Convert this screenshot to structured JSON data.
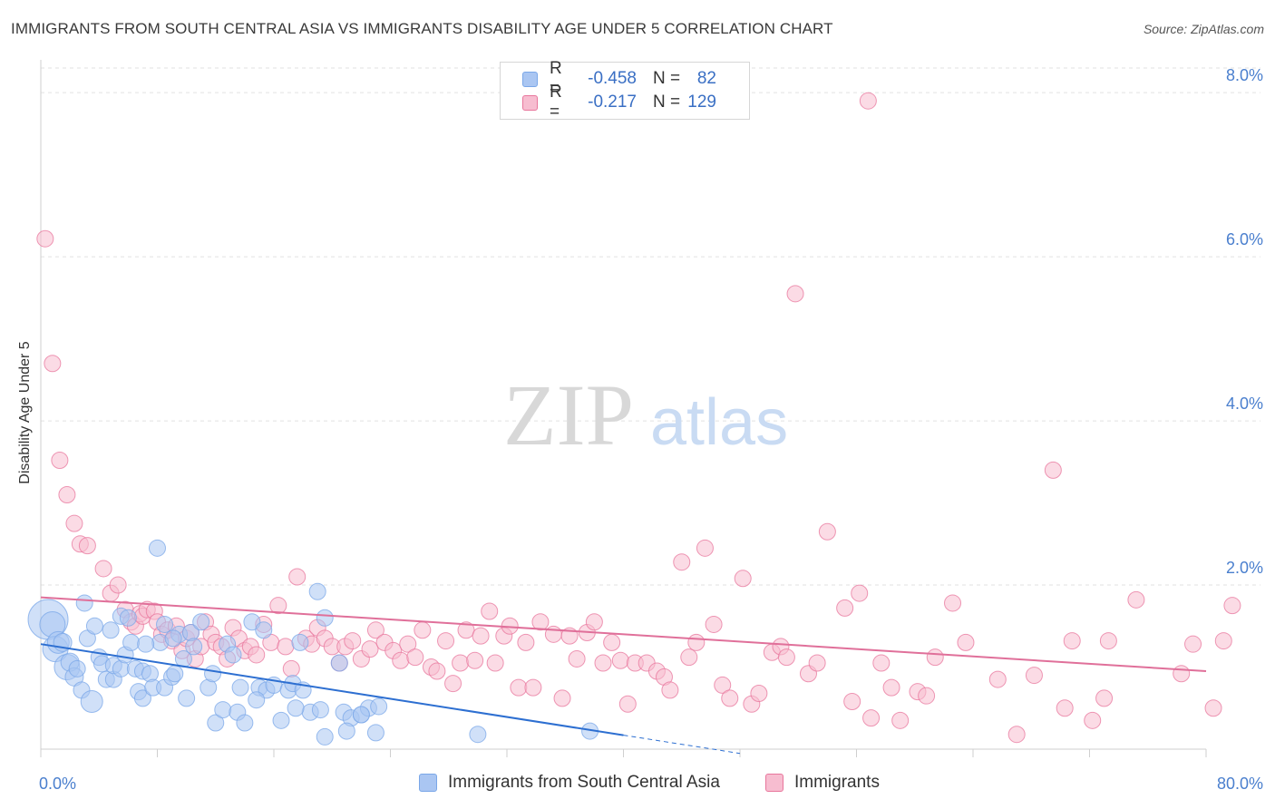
{
  "header": {
    "title": "IMMIGRANTS FROM SOUTH CENTRAL ASIA VS IMMIGRANTS DISABILITY AGE UNDER 5 CORRELATION CHART",
    "source": "Source: ZipAtlas.com"
  },
  "legend": {
    "rows": [
      {
        "r_label": "R =",
        "r_value": "-0.458",
        "n_label": "N =",
        "n_value": "82",
        "color": "#aac6f2"
      },
      {
        "r_label": "R =",
        "r_value": "-0.217",
        "n_label": "N =",
        "n_value": "129",
        "color": "#f7bdd0"
      }
    ]
  },
  "watermark": {
    "zip": "ZIP",
    "atlas": "atlas"
  },
  "chart_data": {
    "type": "scatter",
    "title": "IMMIGRANTS FROM SOUTH CENTRAL ASIA VS IMMIGRANTS DISABILITY AGE UNDER 5 CORRELATION CHART",
    "ylabel": "Disability Age Under 5",
    "xlabel": "",
    "xlim": [
      0,
      80
    ],
    "ylim": [
      0,
      8.3
    ],
    "x_tick_labels": [
      "0.0%",
      "80.0%"
    ],
    "y_ticks": [
      2,
      4,
      6,
      8
    ],
    "y_tick_labels": [
      "2.0%",
      "4.0%",
      "6.0%",
      "8.0%"
    ],
    "grid": true,
    "legend_position": "top-center",
    "series": [
      {
        "name": "Immigrants from South Central Asia",
        "color": "#7aa7e8",
        "fill": "#aac6f2",
        "r": -0.458,
        "n": 82,
        "trend": {
          "x0": 0,
          "y0": 1.28,
          "x1": 40,
          "y1": 0.17,
          "dash_to_x": 48
        },
        "points": [
          [
            0.5,
            1.58,
            22
          ],
          [
            0.8,
            1.52,
            14
          ],
          [
            1,
            1.22,
            14
          ],
          [
            1.2,
            1.3,
            12
          ],
          [
            1.5,
            1.3,
            10
          ],
          [
            1.8,
            1.0,
            14
          ],
          [
            2,
            1.06,
            10
          ],
          [
            2.3,
            0.88,
            10
          ],
          [
            2.5,
            0.98,
            9
          ],
          [
            2.8,
            0.72,
            9
          ],
          [
            3,
            1.78,
            9
          ],
          [
            3.2,
            1.35,
            9
          ],
          [
            3.5,
            0.58,
            12
          ],
          [
            3.7,
            1.5,
            9
          ],
          [
            4,
            1.12,
            9
          ],
          [
            4.2,
            1.04,
            9
          ],
          [
            4.5,
            0.85,
            9
          ],
          [
            4.8,
            1.45,
            9
          ],
          [
            5,
            0.85,
            9
          ],
          [
            5,
            1.02,
            9
          ],
          [
            5.5,
            0.98,
            9
          ],
          [
            5.8,
            1.15,
            9
          ],
          [
            5.5,
            1.62,
            9
          ],
          [
            6,
            1.6,
            9
          ],
          [
            6.2,
            1.3,
            9
          ],
          [
            6.5,
            0.98,
            9
          ],
          [
            6.7,
            0.7,
            9
          ],
          [
            7,
            0.62,
            9
          ],
          [
            7,
            0.95,
            9
          ],
          [
            7.5,
            0.92,
            9
          ],
          [
            7.7,
            0.75,
            9
          ],
          [
            8,
            2.45,
            9
          ],
          [
            8.2,
            1.3,
            9
          ],
          [
            8.5,
            0.75,
            9
          ],
          [
            8.5,
            1.52,
            9
          ],
          [
            9,
            0.88,
            9
          ],
          [
            9.2,
            0.92,
            9
          ],
          [
            9.5,
            1.4,
            9
          ],
          [
            9.8,
            1.1,
            9
          ],
          [
            10,
            0.62,
            9
          ],
          [
            10.3,
            1.42,
            9
          ],
          [
            10.5,
            1.25,
            9
          ],
          [
            11,
            1.55,
            9
          ],
          [
            11.5,
            0.75,
            9
          ],
          [
            11.8,
            0.92,
            9
          ],
          [
            12,
            0.32,
            9
          ],
          [
            12.5,
            0.48,
            9
          ],
          [
            12.8,
            1.28,
            9
          ],
          [
            13.2,
            1.15,
            9
          ],
          [
            13.5,
            0.45,
            9
          ],
          [
            13.7,
            0.75,
            9
          ],
          [
            14,
            0.32,
            9
          ],
          [
            14.5,
            1.55,
            9
          ],
          [
            15,
            0.75,
            9
          ],
          [
            15.3,
            1.45,
            9
          ],
          [
            15.5,
            0.72,
            9
          ],
          [
            16,
            0.78,
            9
          ],
          [
            16.5,
            0.35,
            9
          ],
          [
            17,
            0.72,
            9
          ],
          [
            17.3,
            0.8,
            9
          ],
          [
            17.8,
            1.3,
            9
          ],
          [
            18,
            0.72,
            9
          ],
          [
            18.5,
            0.45,
            9
          ],
          [
            19,
            1.92,
            9
          ],
          [
            19.5,
            1.6,
            9
          ],
          [
            20.8,
            0.45,
            9
          ],
          [
            21.3,
            0.38,
            9
          ],
          [
            22,
            0.42,
            9
          ],
          [
            22.5,
            0.5,
            9
          ],
          [
            19.5,
            0.15,
            9
          ],
          [
            21,
            0.22,
            9
          ],
          [
            23,
            0.2,
            9
          ],
          [
            30,
            0.18,
            9
          ],
          [
            37.7,
            0.22,
            9
          ],
          [
            20.5,
            1.05,
            9
          ],
          [
            22,
            0.42,
            9
          ],
          [
            23.2,
            0.52,
            9
          ],
          [
            19.2,
            0.48,
            9
          ],
          [
            14.8,
            0.6,
            9
          ],
          [
            17.5,
            0.5,
            9
          ],
          [
            7.2,
            1.28,
            9
          ],
          [
            9.1,
            1.35,
            9
          ]
        ]
      },
      {
        "name": "Immigrants",
        "color": "#e8769c",
        "fill": "#f7bdd0",
        "r": -0.217,
        "n": 129,
        "trend": {
          "x0": 0,
          "y0": 1.85,
          "x1": 80,
          "y1": 0.95
        },
        "points": [
          [
            0.3,
            6.22
          ],
          [
            0.8,
            4.7
          ],
          [
            1.3,
            3.52
          ],
          [
            1.8,
            3.1
          ],
          [
            2.3,
            2.75
          ],
          [
            2.7,
            2.5
          ],
          [
            3.2,
            2.48
          ],
          [
            4.3,
            2.2
          ],
          [
            4.8,
            1.9
          ],
          [
            5.3,
            2.0
          ],
          [
            5.8,
            1.7
          ],
          [
            6.2,
            1.55
          ],
          [
            6.5,
            1.5
          ],
          [
            6.8,
            1.65
          ],
          [
            7,
            1.62
          ],
          [
            7.3,
            1.7
          ],
          [
            7.8,
            1.68
          ],
          [
            8,
            1.55
          ],
          [
            8.3,
            1.4
          ],
          [
            8.7,
            1.45
          ],
          [
            9,
            1.32
          ],
          [
            9.3,
            1.5
          ],
          [
            9.7,
            1.2
          ],
          [
            10,
            1.35
          ],
          [
            10.3,
            1.42
          ],
          [
            10.6,
            1.1
          ],
          [
            11,
            1.25
          ],
          [
            11.3,
            1.55
          ],
          [
            11.7,
            1.4
          ],
          [
            12,
            1.3
          ],
          [
            12.4,
            1.25
          ],
          [
            12.8,
            1.1
          ],
          [
            13.2,
            1.48
          ],
          [
            13.6,
            1.35
          ],
          [
            14,
            1.2
          ],
          [
            14.4,
            1.25
          ],
          [
            14.8,
            1.15
          ],
          [
            15.3,
            1.52
          ],
          [
            15.8,
            1.3
          ],
          [
            16.3,
            1.75
          ],
          [
            16.8,
            1.25
          ],
          [
            17.2,
            0.98
          ],
          [
            17.6,
            2.1
          ],
          [
            18.2,
            1.35
          ],
          [
            18.6,
            1.28
          ],
          [
            19,
            1.48
          ],
          [
            19.5,
            1.35
          ],
          [
            20,
            1.25
          ],
          [
            20.5,
            1.05
          ],
          [
            20.9,
            1.25
          ],
          [
            21.4,
            1.32
          ],
          [
            22,
            1.1
          ],
          [
            22.6,
            1.22
          ],
          [
            23,
            1.45
          ],
          [
            23.6,
            1.3
          ],
          [
            24.2,
            1.2
          ],
          [
            24.7,
            1.08
          ],
          [
            25.2,
            1.28
          ],
          [
            25.7,
            1.12
          ],
          [
            26.2,
            1.45
          ],
          [
            26.8,
            1.0
          ],
          [
            27.2,
            0.95
          ],
          [
            27.8,
            1.32
          ],
          [
            28.3,
            0.8
          ],
          [
            28.8,
            1.05
          ],
          [
            29.2,
            1.45
          ],
          [
            29.8,
            1.08
          ],
          [
            30.2,
            1.38
          ],
          [
            30.8,
            1.68
          ],
          [
            31.2,
            1.05
          ],
          [
            31.8,
            1.38
          ],
          [
            32.2,
            1.5
          ],
          [
            32.8,
            0.75
          ],
          [
            33.3,
            1.3
          ],
          [
            33.8,
            0.75
          ],
          [
            34.3,
            1.55
          ],
          [
            35.2,
            1.4
          ],
          [
            35.8,
            0.62
          ],
          [
            36.3,
            1.38
          ],
          [
            36.8,
            1.1
          ],
          [
            37.5,
            1.42
          ],
          [
            38,
            1.55
          ],
          [
            38.6,
            1.05
          ],
          [
            39.2,
            1.3
          ],
          [
            39.8,
            1.08
          ],
          [
            40.3,
            0.55
          ],
          [
            40.8,
            1.05
          ],
          [
            41.6,
            1.05
          ],
          [
            42.3,
            0.95
          ],
          [
            42.8,
            0.88
          ],
          [
            43.2,
            0.72
          ],
          [
            44,
            2.28
          ],
          [
            44.5,
            1.12
          ],
          [
            45,
            1.3
          ],
          [
            45.6,
            2.45
          ],
          [
            46.2,
            1.52
          ],
          [
            46.8,
            0.78
          ],
          [
            47.3,
            0.62
          ],
          [
            48.2,
            2.08
          ],
          [
            48.8,
            0.55
          ],
          [
            49.3,
            0.68
          ],
          [
            50.2,
            1.18
          ],
          [
            50.8,
            1.25
          ],
          [
            51.2,
            1.12
          ],
          [
            51.8,
            5.55
          ],
          [
            52.7,
            0.92
          ],
          [
            53.3,
            1.05
          ],
          [
            54,
            2.65
          ],
          [
            55.2,
            1.72
          ],
          [
            55.7,
            0.58
          ],
          [
            56.2,
            1.9
          ],
          [
            57,
            0.38
          ],
          [
            57.7,
            1.05
          ],
          [
            58.4,
            0.75
          ],
          [
            59,
            0.35
          ],
          [
            60.2,
            0.7
          ],
          [
            60.8,
            0.65
          ],
          [
            61.4,
            1.12
          ],
          [
            62.6,
            1.78
          ],
          [
            63.5,
            1.3
          ],
          [
            65.7,
            0.85
          ],
          [
            67,
            0.18
          ],
          [
            68.2,
            0.9
          ],
          [
            69.5,
            3.4
          ],
          [
            70.3,
            0.5
          ],
          [
            70.8,
            1.32
          ],
          [
            72.2,
            0.35
          ],
          [
            73,
            0.62
          ],
          [
            73.3,
            1.32
          ],
          [
            75.2,
            1.82
          ],
          [
            78.3,
            0.92
          ],
          [
            79.1,
            1.28
          ],
          [
            80.5,
            0.5
          ],
          [
            81.2,
            1.32
          ],
          [
            81.8,
            1.75
          ],
          [
            56.8,
            7.9
          ]
        ]
      }
    ]
  },
  "bottom_legend": [
    {
      "label": "Immigrants from South Central Asia",
      "color": "#aac6f2",
      "border": "#7aa7e8"
    },
    {
      "label": "Immigrants",
      "color": "#f7bdd0",
      "border": "#e8769c"
    }
  ]
}
